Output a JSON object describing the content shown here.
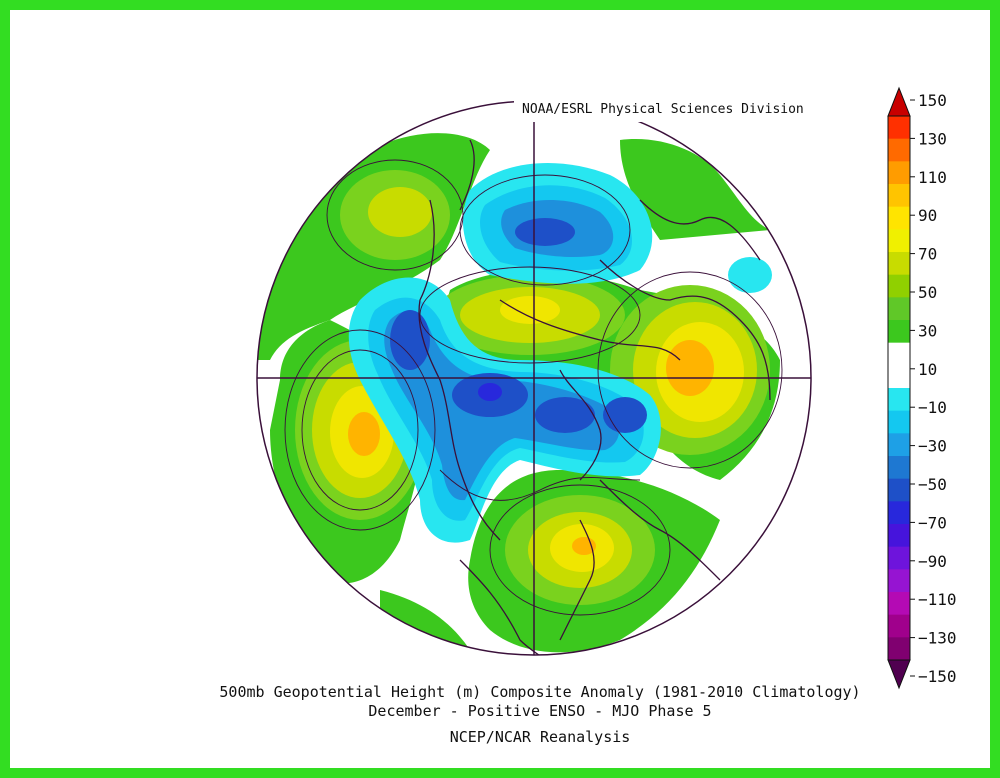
{
  "credit": "NOAA/ESRL Physical Sciences Division",
  "caption": {
    "line1": "500mb Geopotential Height (m) Composite Anomaly (1981-2010 Climatology)",
    "line2": "December - Positive ENSO - MJO Phase 5",
    "line3": "NCEP/NCAR Reanalysis"
  },
  "colorbar": {
    "unit_values": [
      150,
      130,
      110,
      90,
      70,
      50,
      30,
      10,
      -10,
      -30,
      -50,
      -70,
      -90,
      -110,
      -130,
      -150
    ],
    "labels": [
      "150",
      "130",
      "110",
      "90",
      "70",
      "50",
      "30",
      "10",
      "−10",
      "−30",
      "−50",
      "−70",
      "−90",
      "−110",
      "−130",
      "−150"
    ],
    "colors": [
      "#c80000",
      "#ff3000",
      "#ff6a00",
      "#ff9c00",
      "#ffc400",
      "#ffe400",
      "#f0f000",
      "#c8dc00",
      "#90d000",
      "#60c828",
      "#3cc81e",
      "#ffffff",
      "#ffffff",
      "#28e6f0",
      "#14c8f0",
      "#1ea0e6",
      "#1e78d2",
      "#1e50c8",
      "#2828dc",
      "#4614dc",
      "#6e14dc",
      "#9614d2",
      "#b40ab4",
      "#a0008c",
      "#800070",
      "#500050"
    ]
  },
  "map": {
    "projection": "north-polar-stereographic",
    "colors": {
      "green": "#3cc81e",
      "light_green": "#7ad21e",
      "yellow_green": "#c8dc00",
      "yellow": "#f0e600",
      "orange": "#ffb400",
      "cyan": "#28e6f0",
      "light_blue": "#14c8f0",
      "blue": "#1e90dc",
      "dark_blue": "#1e50c8",
      "indigo": "#2828dc"
    }
  }
}
